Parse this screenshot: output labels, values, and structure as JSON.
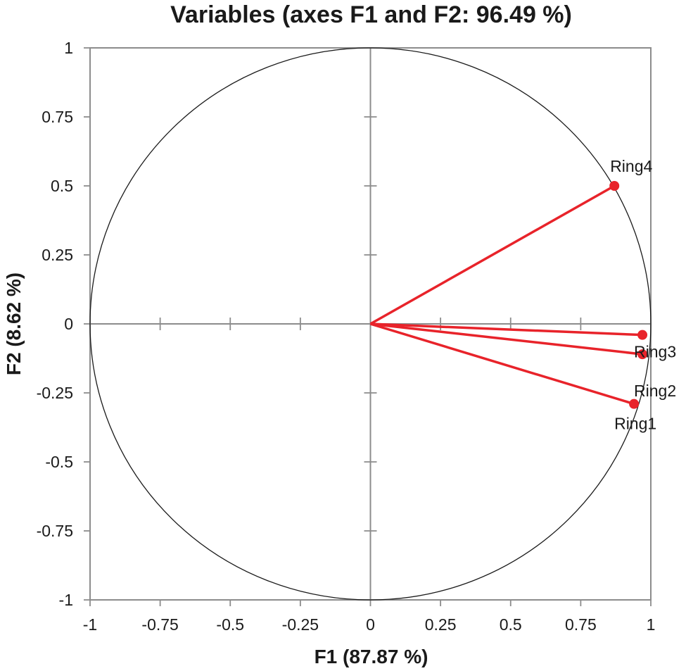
{
  "chart_data": {
    "type": "scatter",
    "title": "Variables (axes F1 and F2: 96.49 %)",
    "xlabel": "F1 (87.87 %)",
    "ylabel": "F2 (8.62 %)",
    "xlim": [
      -1,
      1
    ],
    "ylim": [
      -1,
      1
    ],
    "xticks": [
      -1,
      -0.75,
      -0.5,
      -0.25,
      0,
      0.25,
      0.5,
      0.75,
      1
    ],
    "yticks": [
      -1,
      -0.75,
      -0.5,
      -0.25,
      0,
      0.25,
      0.5,
      0.75,
      1
    ],
    "x_tick_labels": [
      "-1",
      "-0.75",
      "-0.5",
      "-0.25",
      "0",
      "0.25",
      "0.5",
      "0.75",
      "1"
    ],
    "y_tick_labels": [
      "-1",
      "-0.75",
      "-0.5",
      "-0.25",
      "0",
      "0.25",
      "0.5",
      "0.75",
      "1"
    ],
    "correlation_circle": true,
    "vector_color": "#e8232a",
    "points": [
      {
        "label": "Ring4",
        "x": 0.87,
        "y": 0.5
      },
      {
        "label": "Ring3",
        "x": 0.97,
        "y": -0.04
      },
      {
        "label": "Ring2",
        "x": 0.97,
        "y": -0.11
      },
      {
        "label": "Ring1",
        "x": 0.94,
        "y": -0.29
      }
    ]
  }
}
